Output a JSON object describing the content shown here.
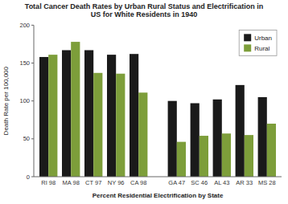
{
  "chart_data": {
    "type": "bar",
    "title": "Total Cancer Death Rates by Urban Rural Status and Electrification in\nUS for White Residents in 1940",
    "xlabel": "Percent Residential Electrification by State",
    "ylabel": "Death Rate per 100,000",
    "categories": [
      "RI 98",
      "MA 98",
      "CT 97",
      "NY 96",
      "CA 98",
      "GA 47",
      "SC 46",
      "AL 43",
      "AR 33",
      "MS 28"
    ],
    "series": [
      {
        "name": "Urban",
        "color": "#1a1a1a",
        "values": [
          158,
          167,
          167,
          161,
          162,
          100,
          97,
          102,
          121,
          105
        ]
      },
      {
        "name": "Rural",
        "color": "#7d9e3a",
        "values": [
          161,
          178,
          137,
          136,
          111,
          46,
          54,
          57,
          55,
          70
        ]
      }
    ],
    "ylim": [
      0,
      200
    ],
    "yticks": [
      0,
      50,
      100,
      150,
      200
    ],
    "grid": false,
    "legend": "upper right"
  }
}
